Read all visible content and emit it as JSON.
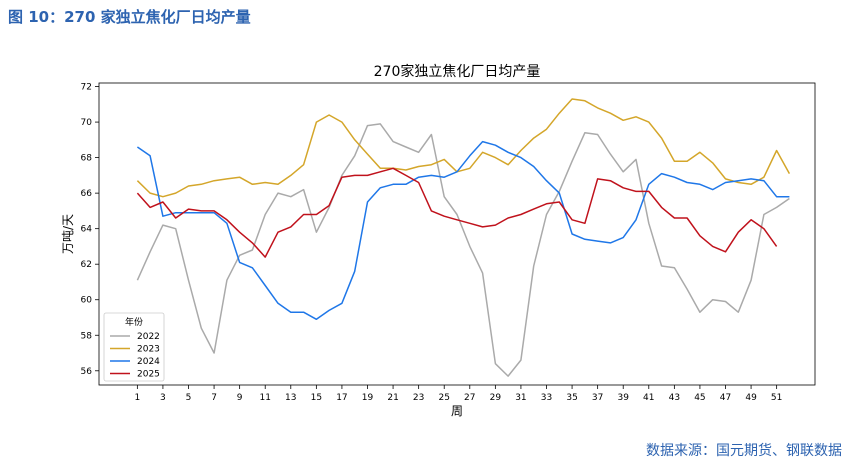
{
  "figure": {
    "caption": "图 10：270 家独立焦化厂日均产量",
    "source": "数据来源：国元期货、钢联数据"
  },
  "chart_data": {
    "type": "line",
    "title": "270家独立焦化厂日均产量",
    "xlabel": "周",
    "ylabel": "万吨/天",
    "xlim": [
      -2,
      54
    ],
    "ylim": [
      55.2,
      72.2
    ],
    "xticks": [
      1,
      3,
      5,
      7,
      9,
      11,
      13,
      15,
      17,
      19,
      21,
      23,
      25,
      27,
      29,
      31,
      33,
      35,
      37,
      39,
      41,
      43,
      45,
      47,
      49,
      51
    ],
    "yticks": [
      56,
      58,
      60,
      62,
      64,
      66,
      68,
      70,
      72
    ],
    "legend": {
      "title": "年份",
      "position": "lower-left"
    },
    "series": [
      {
        "name": "2022",
        "color": "#aaaaaa",
        "values": [
          61.1,
          62.7,
          64.2,
          64.0,
          61.1,
          58.4,
          57.0,
          61.1,
          62.5,
          62.8,
          64.8,
          66.0,
          65.8,
          66.2,
          63.8,
          65.2,
          67.0,
          68.1,
          69.8,
          69.9,
          68.9,
          68.6,
          68.3,
          69.3,
          65.8,
          64.8,
          63.0,
          61.5,
          56.4,
          55.7,
          56.6,
          61.9,
          64.8,
          66.1,
          67.8,
          69.4,
          69.3,
          68.2,
          67.2,
          67.9,
          64.3,
          61.9,
          61.8,
          60.6,
          59.3,
          60.0,
          59.9,
          59.3,
          61.1,
          64.8,
          65.2,
          65.7
        ]
      },
      {
        "name": "2023",
        "color": "#d4a62a",
        "values": [
          66.7,
          66.0,
          65.8,
          66.0,
          66.4,
          66.5,
          66.7,
          66.8,
          66.9,
          66.5,
          66.6,
          66.5,
          67.0,
          67.6,
          70.0,
          70.4,
          70.0,
          69.0,
          68.2,
          67.4,
          67.4,
          67.3,
          67.5,
          67.6,
          67.9,
          67.2,
          67.4,
          68.3,
          68.0,
          67.6,
          68.4,
          69.1,
          69.6,
          70.5,
          71.3,
          71.2,
          70.8,
          70.5,
          70.1,
          70.3,
          70.0,
          69.1,
          67.8,
          67.8,
          68.3,
          67.7,
          66.8,
          66.6,
          66.5,
          66.9,
          68.4,
          67.1
        ]
      },
      {
        "name": "2024",
        "color": "#1f77e8",
        "values": [
          68.6,
          68.1,
          64.7,
          64.9,
          64.9,
          64.9,
          64.9,
          64.3,
          62.1,
          61.8,
          60.8,
          59.8,
          59.3,
          59.3,
          58.9,
          59.4,
          59.8,
          61.6,
          65.5,
          66.3,
          66.5,
          66.5,
          66.9,
          67.0,
          66.9,
          67.2,
          68.1,
          68.9,
          68.7,
          68.3,
          68.0,
          67.5,
          66.7,
          66.0,
          63.7,
          63.4,
          63.3,
          63.2,
          63.5,
          64.5,
          66.5,
          67.1,
          66.9,
          66.6,
          66.5,
          66.2,
          66.6,
          66.7,
          66.8,
          66.7,
          65.8,
          65.8
        ]
      },
      {
        "name": "2025",
        "color": "#c0121c",
        "values": [
          66.0,
          65.2,
          65.5,
          64.6,
          65.1,
          65.0,
          65.0,
          64.5,
          63.8,
          63.2,
          62.4,
          63.8,
          64.1,
          64.8,
          64.8,
          65.3,
          66.9,
          67.0,
          67.0,
          67.2,
          67.4,
          67.0,
          66.6,
          65.0,
          64.7,
          64.5,
          64.3,
          64.1,
          64.2,
          64.6,
          64.8,
          65.1,
          65.4,
          65.5,
          64.5,
          64.3,
          66.8,
          66.7,
          66.3,
          66.1,
          66.1,
          65.2,
          64.6,
          64.6,
          63.6,
          63.0,
          62.7,
          63.8,
          64.5,
          64.0,
          63.0
        ]
      }
    ]
  }
}
